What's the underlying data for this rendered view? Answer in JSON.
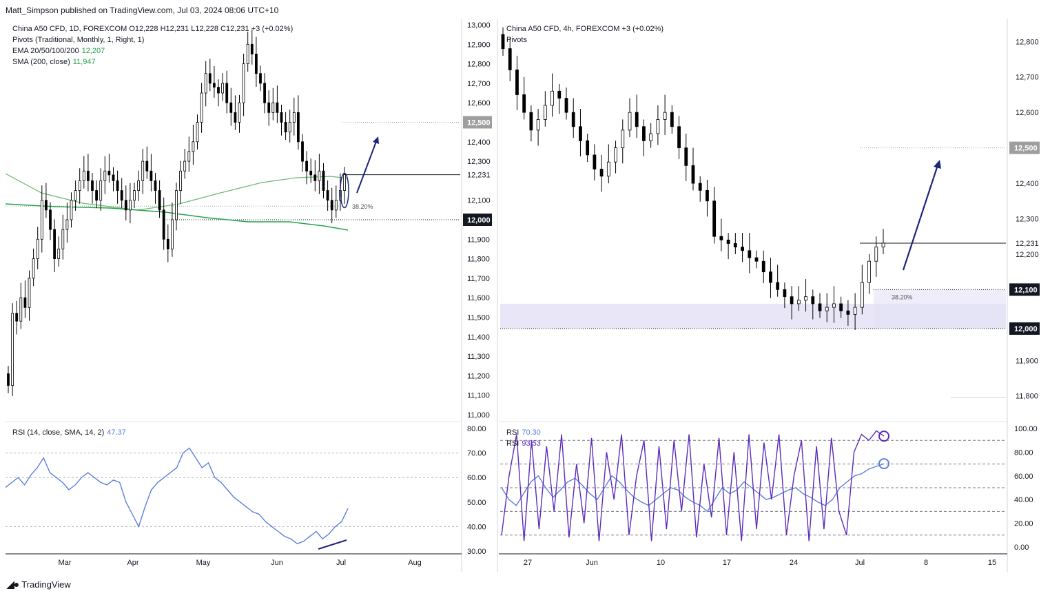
{
  "header": {
    "text": "Matt_Simpson published on TradingView.com, Jul 03, 2024 08:06 UTC+10"
  },
  "footer": {
    "text": "TradingView",
    "logo": "tradingview-logo-icon"
  },
  "colors": {
    "up_candle": "#ffffff",
    "down_candle": "#000000",
    "ema": "#6fb86f",
    "sma": "#22a34a",
    "rsi_line": "#5b7fde",
    "rsi2_line": "#5b2bb8",
    "arrow": "#1a237e",
    "zone": "#e3e1f5",
    "price_tag": "#131722",
    "level_tag": "#9e9e9e"
  },
  "left_panel": {
    "legend": {
      "line1": "China A50 CFD, 1D, FOREXCOM  O12,228  H12,231  L12,228  C12,231  +3 (+0.02%)",
      "line2": "Pivots (Traditional, Monthly, 1, Right, 1)",
      "line3_label": "EMA 20/50/100/200",
      "line3_value": "12,207",
      "line4_label": "SMA (200, close)",
      "line4_value": "11,947"
    },
    "rsi_legend": {
      "label": "RSI (14, close, SMA, 14, 2)",
      "value": "47.37"
    },
    "price_axis": [
      "13,000",
      "12,900",
      "12,800",
      "12,700",
      "12,600",
      "12,500",
      "12,400",
      "12,300",
      "12,231",
      "12,100",
      "12,000",
      "11,900",
      "11,800",
      "11,700",
      "11,600",
      "11,500",
      "11,400",
      "11,300",
      "11,200",
      "11,100",
      "11,000"
    ],
    "price_tags": {
      "current": "12,231",
      "pivot_high": "12,500",
      "pivot_low": "12,000"
    },
    "rsi_axis": [
      "80.00",
      "70.00",
      "60.00",
      "50.00",
      "40.00",
      "30.00"
    ],
    "time_axis": [
      "Mar",
      "Apr",
      "May",
      "Jun",
      "Jul",
      "Aug"
    ],
    "fib_label": "38.20%"
  },
  "right_panel": {
    "legend": {
      "line1": "China A50 CFD, 4h, FOREXCOM  +3 (+0.02%)",
      "line2": "Pivots"
    },
    "rsi_legend": {
      "line1_label": "RSI",
      "line1_value": "70.30",
      "line2_label": "RSI",
      "line2_value": "93.53"
    },
    "price_axis": [
      "12,800",
      "12,700",
      "12,600",
      "12,500",
      "12,400",
      "12,300",
      "12,231",
      "12,200",
      "12,100",
      "12,000",
      "11,900",
      "11,800"
    ],
    "price_tags": {
      "current": "12,231",
      "pivot_high": "12,500",
      "level1": "12,100",
      "level2": "12,000"
    },
    "rsi_axis": [
      "100.00",
      "80.00",
      "60.00",
      "40.00",
      "20.00",
      "0.00"
    ],
    "time_axis": [
      "27",
      "Jun",
      "10",
      "17",
      "24",
      "Jul",
      "8",
      "15"
    ],
    "fib_label": "38.20%"
  },
  "chart_data": [
    {
      "type": "candlestick",
      "title": "China A50 CFD, 1D, FOREXCOM",
      "ylim": [
        11000,
        13000
      ],
      "x_ticks": [
        "Mar",
        "Apr",
        "May",
        "Jun",
        "Jul",
        "Aug"
      ],
      "last_close": 12231,
      "ema_value": 12207,
      "sma200_value": 11947,
      "close_series": [
        11150,
        11520,
        11480,
        11600,
        11550,
        11700,
        11800,
        11900,
        12100,
        12050,
        11950,
        11800,
        11850,
        11950,
        12000,
        12100,
        12150,
        12200,
        12250,
        12200,
        12150,
        12100,
        12200,
        12250,
        12230,
        12200,
        12150,
        12100,
        12050,
        12100,
        12150,
        12200,
        12300,
        12250,
        12200,
        12150,
        12050,
        11900,
        11850,
        12000,
        12150,
        12250,
        12300,
        12350,
        12400,
        12500,
        12650,
        12750,
        12700,
        12680,
        12650,
        12700,
        12600,
        12550,
        12500,
        12600,
        12800,
        12900,
        12850,
        12750,
        12700,
        12600,
        12550,
        12600,
        12550,
        12500,
        12450,
        12500,
        12550,
        12400,
        12300,
        12250,
        12230,
        12200,
        12250,
        12150,
        12100,
        12050,
        12100,
        12150,
        12231
      ],
      "rsi_series": [
        56,
        58,
        60,
        57,
        61,
        64,
        68,
        62,
        60,
        58,
        55,
        57,
        60,
        62,
        60,
        58,
        57,
        59,
        58,
        50,
        45,
        40,
        48,
        55,
        58,
        60,
        62,
        64,
        70,
        72,
        68,
        64,
        66,
        60,
        58,
        55,
        52,
        50,
        48,
        46,
        45,
        42,
        40,
        38,
        36,
        35,
        33,
        34,
        36,
        38,
        35,
        37,
        40,
        42,
        47.37
      ],
      "rsi_ylim": [
        30,
        80
      ]
    },
    {
      "type": "candlestick",
      "title": "China A50 CFD, 4h, FOREXCOM",
      "ylim": [
        11780,
        12820
      ],
      "x_ticks": [
        "27",
        "Jun",
        "10",
        "17",
        "24",
        "Jul",
        "8",
        "15"
      ],
      "last_close": 12231,
      "close_series": [
        12780,
        12720,
        12650,
        12600,
        12550,
        12580,
        12620,
        12660,
        12640,
        12600,
        12560,
        12520,
        12480,
        12440,
        12420,
        12460,
        12500,
        12550,
        12600,
        12560,
        12520,
        12540,
        12580,
        12600,
        12560,
        12500,
        12450,
        12400,
        12380,
        12350,
        12250,
        12240,
        12230,
        12220,
        12210,
        12190,
        12180,
        12150,
        12120,
        12100,
        12080,
        12060,
        12070,
        12080,
        12060,
        12040,
        12050,
        12060,
        12040,
        12030,
        12050,
        12120,
        12180,
        12220,
        12231
      ],
      "rsi1_series": [
        50,
        40,
        35,
        45,
        55,
        60,
        50,
        42,
        48,
        55,
        58,
        52,
        45,
        40,
        50,
        60,
        55,
        48,
        42,
        38,
        35,
        40,
        45,
        50,
        48,
        42,
        38,
        35,
        30,
        40,
        50,
        45,
        48,
        55,
        50,
        45,
        40,
        42,
        45,
        48,
        50,
        45,
        42,
        38,
        35,
        40,
        50,
        55,
        60,
        62,
        66,
        68,
        70.3
      ],
      "rsi2_series": [
        10,
        60,
        95,
        5,
        90,
        15,
        85,
        30,
        95,
        8,
        70,
        20,
        92,
        5,
        80,
        40,
        95,
        10,
        60,
        90,
        5,
        85,
        15,
        90,
        30,
        95,
        8,
        70,
        25,
        92,
        10,
        80,
        5,
        95,
        15,
        88,
        40,
        95,
        10,
        60,
        90,
        5,
        85,
        15,
        92,
        30,
        10,
        80,
        95,
        90,
        98,
        93.53
      ],
      "rsi_ylim": [
        0,
        100
      ]
    }
  ]
}
